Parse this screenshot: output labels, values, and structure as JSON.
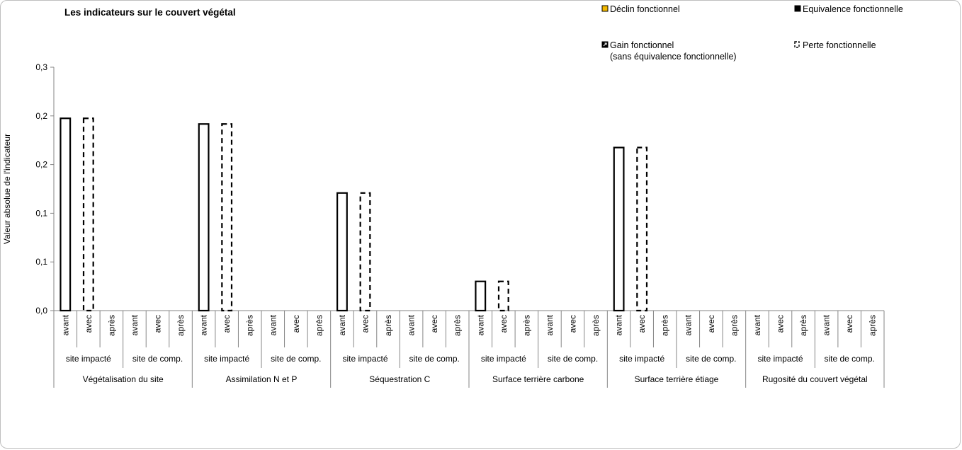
{
  "chart_data": {
    "type": "bar",
    "title": "Les indicateurs sur le couvert végétal",
    "ylabel": "Valeur absolue de l'indicateur",
    "ylim": [
      0,
      0.3
    ],
    "y_ticks": [
      "0,0",
      "0,1",
      "0,1",
      "0,2",
      "0,2",
      "0,3"
    ],
    "groups": [
      "Végétalisation du site",
      "Assimilation N et P",
      "Séquestration C",
      "Surface terrière carbone",
      "Surface terrière étiage",
      "Rugosité du couvert végétal"
    ],
    "sites": [
      "site impacté",
      "site de comp."
    ],
    "periods": [
      "avant",
      "avec",
      "après"
    ],
    "series": [
      {
        "name": "Perte fonctionnelle",
        "legend": "Perte fonctionnelle",
        "style": "outline-solid",
        "period": "avant",
        "site": "site impacté",
        "values": [
          0.237,
          0.23,
          0.145,
          0.036,
          0.201,
          0
        ]
      },
      {
        "name": "Perte fonctionnelle (avec)",
        "legend": "Perte fonctionnelle",
        "style": "outline-dashed",
        "period": "avec",
        "site": "site impacté",
        "values": [
          0.237,
          0.23,
          0.145,
          0.036,
          0.201,
          0
        ]
      }
    ],
    "legend": [
      {
        "label": "Déclin fonctionnel",
        "color": "#f2b800",
        "marker": "filled-square"
      },
      {
        "label": "Equivalence fonctionnelle",
        "color": "#000000",
        "marker": "filled-square"
      },
      {
        "label": "Gain fonctionnel",
        "label2": "(sans équivalence fonctionnelle)",
        "color": "#000000",
        "marker": "arrow-square"
      },
      {
        "label": "Perte fonctionnelle",
        "color": "#000000",
        "marker": "dashed-outline"
      }
    ],
    "legend_position": "top-right",
    "grid": false
  }
}
